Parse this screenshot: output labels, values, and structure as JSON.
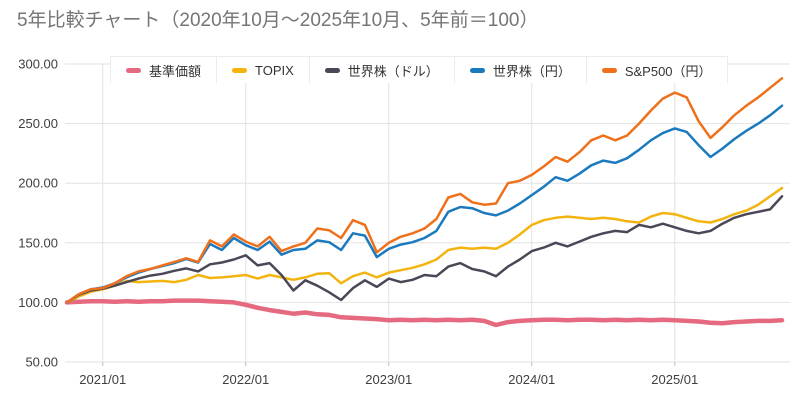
{
  "title": "5年比較チャート（2020年10月～2025年10月、5年前＝100）",
  "colors": {
    "title_text": "#757575",
    "axis_text": "#404040",
    "gridline": "#e2e2e2",
    "tick": "#bdbdbd",
    "background": "#ffffff",
    "legend_border": "#ebebeb"
  },
  "chart_data": {
    "type": "line",
    "title": "5年比較チャート（2020年10月～2025年10月、5年前＝100）",
    "x_start": "2020/10",
    "x_end": "2025/10",
    "x_unit": "month",
    "baseline_note": "5年前＝100",
    "x_tick_labels": [
      "2021/01",
      "2022/01",
      "2023/01",
      "2024/01",
      "2025/01"
    ],
    "x_tick_month_index": [
      3,
      15,
      27,
      39,
      51
    ],
    "y_ticks": [
      300,
      250,
      200,
      150,
      100,
      50
    ],
    "y_tick_labels": [
      "300.00",
      "250.00",
      "200.00",
      "150.00",
      "100.00",
      "50.00"
    ],
    "ylim": [
      50,
      300
    ],
    "grid": true,
    "legend_position": "top",
    "series": [
      {
        "name": "基準価額",
        "slug": "kijun-kagaku",
        "color": "#e5697f",
        "width": 4.5,
        "values": [
          100,
          100.5,
          101,
          101,
          100.5,
          101,
          100.5,
          101,
          101,
          101.5,
          101.5,
          101.5,
          101,
          100.5,
          100,
          98,
          95.5,
          93.5,
          92,
          90.5,
          91.5,
          90,
          89.5,
          87.5,
          87,
          86.5,
          86,
          85,
          85.5,
          85,
          85.5,
          85,
          85.5,
          85,
          85.5,
          84.5,
          81,
          83.5,
          84.5,
          85,
          85.5,
          85.5,
          85,
          85.5,
          85.5,
          85,
          85.5,
          85,
          85.5,
          85,
          85.5,
          85,
          84.5,
          84,
          83,
          82.5,
          83.5,
          84,
          84.5,
          84.5,
          85
        ]
      },
      {
        "name": "TOPIX",
        "slug": "topix",
        "color": "#f3b410",
        "width": 2.5,
        "values": [
          100,
          105,
          109,
          111,
          114,
          118,
          117,
          117.5,
          118,
          117,
          119,
          123,
          120.5,
          121,
          122,
          123,
          120,
          123,
          121,
          119,
          121,
          124,
          124.5,
          116,
          122,
          125,
          121,
          125,
          127,
          129,
          132,
          136,
          144,
          146,
          145,
          146,
          145,
          150,
          157,
          165,
          169,
          171,
          172,
          171,
          170,
          171,
          170,
          168,
          167,
          172,
          175,
          174,
          171,
          168,
          167,
          170,
          174,
          177,
          182,
          189,
          196
        ]
      },
      {
        "name": "世界株（ドル）",
        "slug": "sekaikabu-doru",
        "color": "#4c4757",
        "width": 2.5,
        "values": [
          100,
          106.5,
          110,
          111.5,
          114,
          117,
          120,
          122.5,
          124,
          126.5,
          128.5,
          126,
          132,
          133.5,
          136,
          139.5,
          131,
          133,
          123,
          110,
          118.5,
          114,
          108.5,
          102,
          112,
          118.5,
          113,
          120,
          117,
          119,
          123,
          122,
          130,
          133,
          128,
          126,
          122,
          130,
          136,
          143,
          146,
          150,
          147,
          151,
          155,
          158,
          160,
          159,
          165,
          163,
          166,
          163,
          160,
          158,
          160,
          166,
          171,
          174,
          176,
          178,
          189
        ]
      },
      {
        "name": "世界株（円）",
        "slug": "sekaikabu-en",
        "color": "#1b7abe",
        "width": 2.5,
        "values": [
          100,
          107,
          111,
          112.5,
          116,
          121,
          125,
          128,
          130.5,
          133,
          136.5,
          133.5,
          149,
          144,
          154,
          148,
          144,
          151,
          140,
          144,
          145,
          152,
          150.5,
          144,
          158,
          156,
          138,
          145,
          148.5,
          150.5,
          154,
          160,
          176,
          180,
          179,
          175,
          173,
          177,
          183,
          190,
          197,
          205,
          202,
          208,
          215,
          219,
          217,
          221,
          228,
          236,
          242,
          246,
          243,
          232,
          222,
          229,
          237,
          244,
          250,
          257,
          265
        ]
      },
      {
        "name": "S&P500（円）",
        "slug": "sp500-en",
        "color": "#ef701b",
        "width": 2.5,
        "values": [
          100,
          107,
          111,
          112,
          116,
          122,
          126,
          128,
          131,
          134,
          137,
          134,
          152,
          147,
          157,
          151,
          147,
          155,
          143,
          147,
          150,
          162,
          160.5,
          154,
          169,
          165,
          142,
          150,
          155,
          158,
          162,
          170,
          188,
          191,
          184,
          182,
          183,
          200,
          202,
          207,
          214,
          222,
          218,
          226,
          236,
          240,
          236,
          240,
          250,
          261,
          271,
          276,
          272,
          252,
          238,
          247,
          257,
          265,
          272,
          280,
          288
        ]
      }
    ]
  }
}
